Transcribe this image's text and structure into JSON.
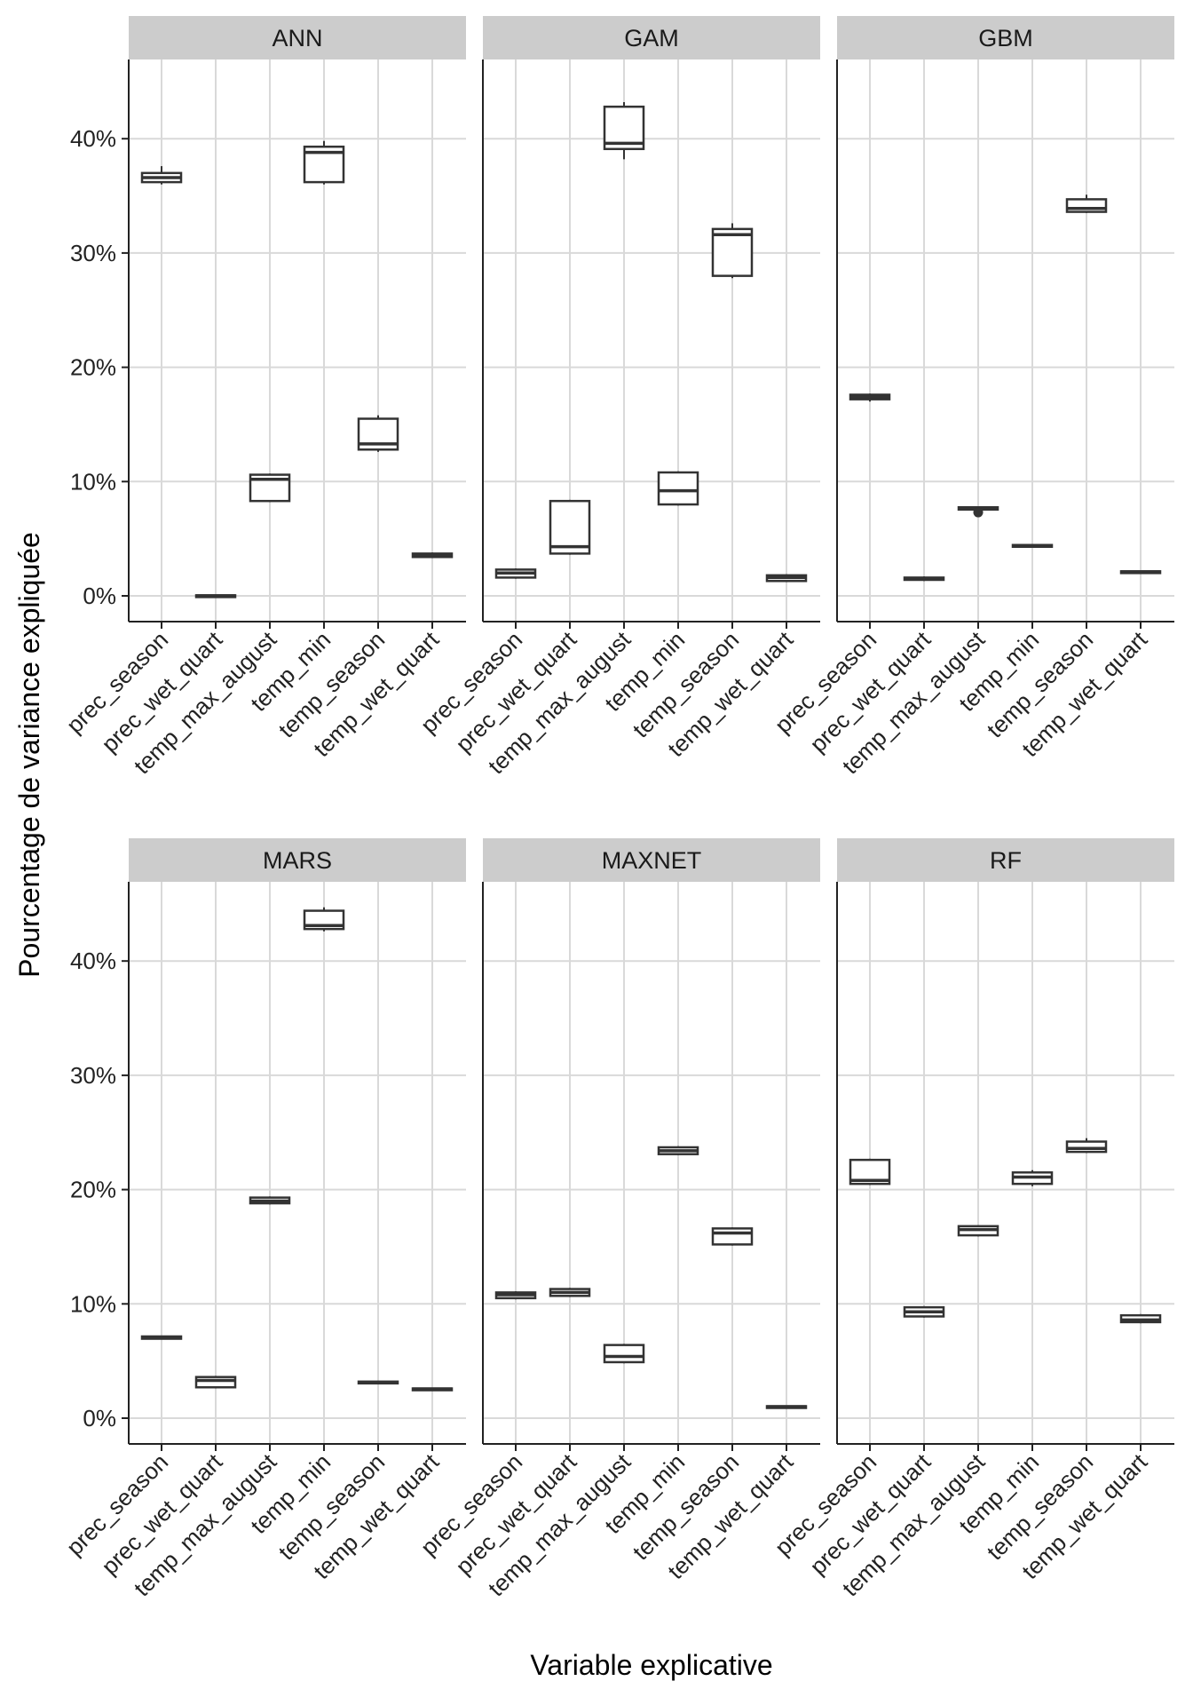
{
  "chart_data": {
    "type": "boxplot",
    "xlabel": "Variable explicative",
    "ylabel": "Pourcentage de variance expliquée",
    "ylim": [
      -2,
      47
    ],
    "y_ticks": [
      0,
      10,
      20,
      30,
      40
    ],
    "y_tick_labels": [
      "0%",
      "10%",
      "20%",
      "30%",
      "40%"
    ],
    "categories": [
      "prec_season",
      "prec_wet_quart",
      "temp_max_august",
      "temp_min",
      "temp_season",
      "temp_wet_quart"
    ],
    "colors": {
      "strip_bg": "#cccccc",
      "grid": "#d9d9d9",
      "box_line": "#333333",
      "axis_line": "#222222"
    },
    "panels": [
      {
        "name": "ANN",
        "boxes": [
          {
            "min": 36.0,
            "q1": 36.2,
            "median": 36.6,
            "q3": 37.0,
            "max": 37.6
          },
          {
            "min": -0.1,
            "q1": -0.05,
            "median": 0.0,
            "q3": 0.05,
            "max": 0.1
          },
          {
            "min": 8.2,
            "q1": 8.3,
            "median": 10.2,
            "q3": 10.6,
            "max": 10.7
          },
          {
            "min": 36.0,
            "q1": 36.2,
            "median": 38.8,
            "q3": 39.3,
            "max": 39.8
          },
          {
            "min": 12.6,
            "q1": 12.8,
            "median": 13.3,
            "q3": 15.5,
            "max": 15.8
          },
          {
            "min": 3.3,
            "q1": 3.4,
            "median": 3.6,
            "q3": 3.7,
            "max": 3.8
          }
        ]
      },
      {
        "name": "GAM",
        "boxes": [
          {
            "min": 1.5,
            "q1": 1.6,
            "median": 2.0,
            "q3": 2.3,
            "max": 2.4
          },
          {
            "min": 3.6,
            "q1": 3.7,
            "median": 4.3,
            "q3": 8.3,
            "max": 8.4
          },
          {
            "min": 38.2,
            "q1": 39.1,
            "median": 39.6,
            "q3": 42.8,
            "max": 43.2
          },
          {
            "min": 7.9,
            "q1": 8.0,
            "median": 9.2,
            "q3": 10.8,
            "max": 10.9
          },
          {
            "min": 27.8,
            "q1": 28.0,
            "median": 31.6,
            "q3": 32.1,
            "max": 32.6
          },
          {
            "min": 1.2,
            "q1": 1.3,
            "median": 1.6,
            "q3": 1.8,
            "max": 1.9
          }
        ]
      },
      {
        "name": "GBM",
        "boxes": [
          {
            "min": 17.0,
            "q1": 17.2,
            "median": 17.4,
            "q3": 17.6,
            "max": 17.7
          },
          {
            "min": 1.3,
            "q1": 1.4,
            "median": 1.5,
            "q3": 1.6,
            "max": 1.7
          },
          {
            "min": 7.5,
            "q1": 7.55,
            "median": 7.65,
            "q3": 7.75,
            "max": 7.8,
            "outliers": [
              7.3
            ]
          },
          {
            "min": 4.3,
            "q1": 4.35,
            "median": 4.4,
            "q3": 4.45,
            "max": 4.5
          },
          {
            "min": 33.5,
            "q1": 33.6,
            "median": 33.9,
            "q3": 34.7,
            "max": 35.1
          },
          {
            "min": 2.0,
            "q1": 2.05,
            "median": 2.1,
            "q3": 2.15,
            "max": 2.2
          }
        ]
      },
      {
        "name": "MARS",
        "boxes": [
          {
            "min": 6.9,
            "q1": 6.95,
            "median": 7.05,
            "q3": 7.15,
            "max": 7.2
          },
          {
            "min": 2.6,
            "q1": 2.7,
            "median": 3.3,
            "q3": 3.6,
            "max": 3.7
          },
          {
            "min": 18.7,
            "q1": 18.8,
            "median": 19.0,
            "q3": 19.3,
            "max": 19.4
          },
          {
            "min": 42.6,
            "q1": 42.8,
            "median": 43.1,
            "q3": 44.4,
            "max": 44.7
          },
          {
            "min": 3.0,
            "q1": 3.05,
            "median": 3.1,
            "q3": 3.2,
            "max": 3.25
          },
          {
            "min": 2.4,
            "q1": 2.45,
            "median": 2.55,
            "q3": 2.6,
            "max": 2.65
          }
        ]
      },
      {
        "name": "MAXNET",
        "boxes": [
          {
            "min": 10.4,
            "q1": 10.5,
            "median": 10.8,
            "q3": 11.0,
            "max": 11.1
          },
          {
            "min": 10.6,
            "q1": 10.7,
            "median": 11.0,
            "q3": 11.3,
            "max": 11.4
          },
          {
            "min": 4.8,
            "q1": 4.9,
            "median": 5.4,
            "q3": 6.4,
            "max": 6.5
          },
          {
            "min": 23.0,
            "q1": 23.1,
            "median": 23.4,
            "q3": 23.7,
            "max": 23.8
          },
          {
            "min": 15.1,
            "q1": 15.2,
            "median": 16.2,
            "q3": 16.6,
            "max": 16.7
          },
          {
            "min": 0.9,
            "q1": 0.95,
            "median": 1.0,
            "q3": 1.05,
            "max": 1.1
          }
        ]
      },
      {
        "name": "RF",
        "boxes": [
          {
            "min": 20.4,
            "q1": 20.5,
            "median": 20.8,
            "q3": 22.6,
            "max": 22.7
          },
          {
            "min": 8.8,
            "q1": 8.9,
            "median": 9.3,
            "q3": 9.7,
            "max": 9.8
          },
          {
            "min": 15.9,
            "q1": 16.0,
            "median": 16.5,
            "q3": 16.8,
            "max": 16.9
          },
          {
            "min": 20.3,
            "q1": 20.5,
            "median": 21.1,
            "q3": 21.5,
            "max": 21.7
          },
          {
            "min": 23.2,
            "q1": 23.3,
            "median": 23.6,
            "q3": 24.2,
            "max": 24.5
          },
          {
            "min": 8.3,
            "q1": 8.4,
            "median": 8.6,
            "q3": 9.0,
            "max": 9.1
          }
        ]
      }
    ]
  }
}
